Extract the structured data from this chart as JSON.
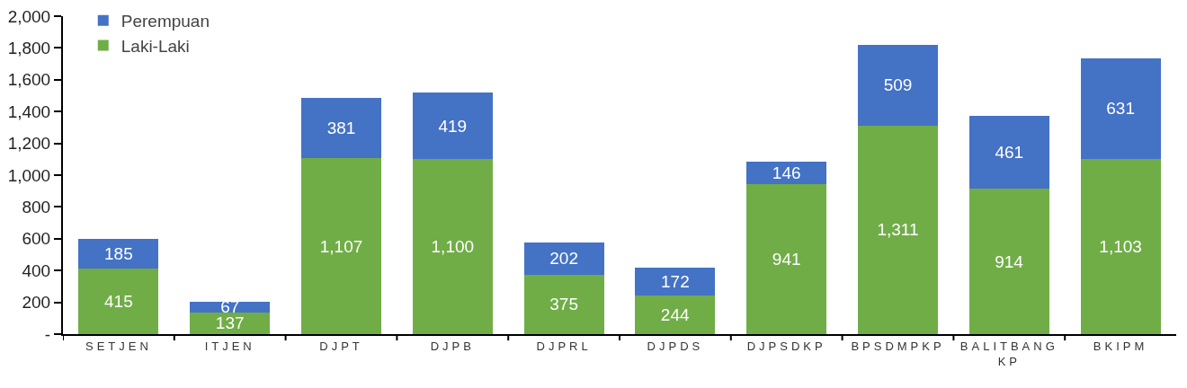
{
  "chart_data": {
    "type": "bar",
    "stacked": true,
    "categories": [
      "SETJEN",
      "ITJEN",
      "DJPT",
      "DJPB",
      "DJPRL",
      "DJPDS",
      "DJPSDKP",
      "BPSDMPKP",
      "BALITBANG KP",
      "BKIPM"
    ],
    "series": [
      {
        "name": "Laki-Laki",
        "color": "#70ad47",
        "values": [
          415,
          137,
          1107,
          1100,
          375,
          244,
          941,
          1311,
          914,
          1103
        ],
        "value_labels": [
          "415",
          "137",
          "1,107",
          "1,100",
          "375",
          "244",
          "941",
          "1,311",
          "914",
          "1,103"
        ]
      },
      {
        "name": "Perempuan",
        "color": "#4472c4",
        "values": [
          185,
          67,
          381,
          419,
          202,
          172,
          146,
          509,
          461,
          631
        ],
        "value_labels": [
          "185",
          "67",
          "381",
          "419",
          "202",
          "172",
          "146",
          "509",
          "461",
          "631"
        ]
      }
    ],
    "ylim": [
      0,
      2000
    ],
    "yticks": [
      {
        "value": 0,
        "label": "-"
      },
      {
        "value": 200,
        "label": "200"
      },
      {
        "value": 400,
        "label": "400"
      },
      {
        "value": 600,
        "label": "600"
      },
      {
        "value": 800,
        "label": "800"
      },
      {
        "value": 1000,
        "label": "1,000"
      },
      {
        "value": 1200,
        "label": "1,200"
      },
      {
        "value": 1400,
        "label": "1,400"
      },
      {
        "value": 1600,
        "label": "1,600"
      },
      {
        "value": 1800,
        "label": "1,800"
      },
      {
        "value": 2000,
        "label": "2,000"
      }
    ],
    "legend": "top left",
    "grid": false
  }
}
